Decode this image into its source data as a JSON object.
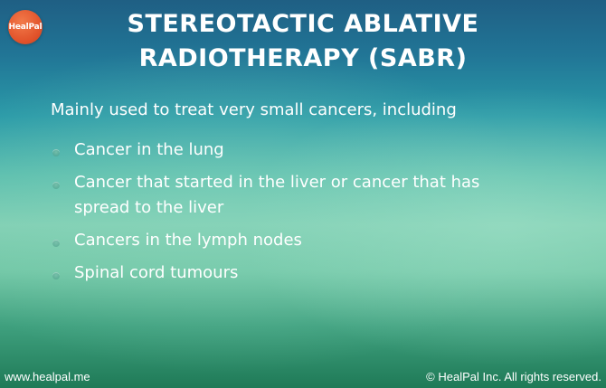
{
  "brand": {
    "logo_text": "HealPal",
    "logo_color": "#e1522a"
  },
  "title": {
    "line1": "STEREOTACTIC ABLATIVE",
    "line2": "RADIOTHERAPY (SABR)"
  },
  "intro": "Mainly used to treat very small cancers, including",
  "bullets": [
    "Cancer in the lung",
    "Cancer that started in the liver or cancer that has spread to the liver",
    "Cancers in the lymph nodes",
    "Spinal cord tumours"
  ],
  "footer": {
    "website": "www.healpal.me",
    "copyright": "© HealPal Inc. All rights reserved."
  }
}
